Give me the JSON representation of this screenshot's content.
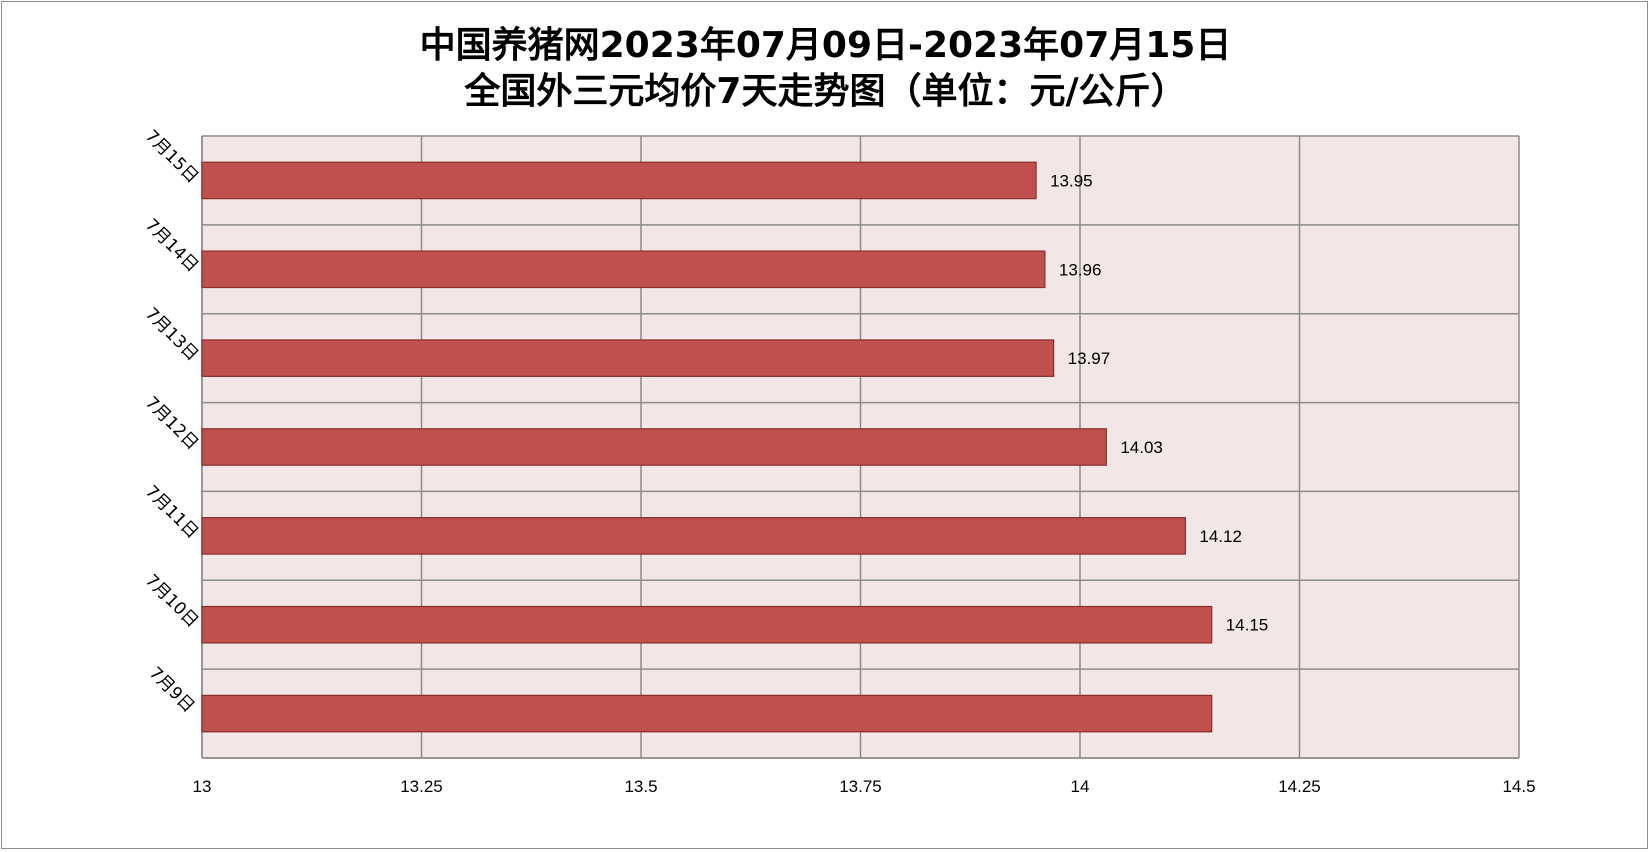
{
  "chart_data": {
    "type": "bar",
    "orientation": "horizontal",
    "title": "中国养猪网2023年07月09日-2023年07月15日",
    "subtitle": "全国外三元均价7天走势图（单位：元/公斤）",
    "categories": [
      "7月15日",
      "7月14日",
      "7月13日",
      "7月12日",
      "7月11日",
      "7月10日",
      "7月9日"
    ],
    "values": [
      13.95,
      13.96,
      13.97,
      14.03,
      14.12,
      14.15,
      14.15
    ],
    "data_labels": [
      "13.95",
      "13.96",
      "13.97",
      "14.03",
      "14.12",
      "14.15",
      ""
    ],
    "xlim": [
      13,
      14.5
    ],
    "xticks": [
      "13",
      "13.25",
      "13.5",
      "13.75",
      "14",
      "14.25",
      "14.5"
    ],
    "xtick_values": [
      13,
      13.25,
      13.5,
      13.75,
      14,
      14.25,
      14.5
    ],
    "xlabel": "",
    "ylabel": "",
    "grid": true,
    "legend": "none",
    "colors": {
      "bar_fill": "#c0504d",
      "bar_stroke": "#8c2d2a",
      "plot_background": "#f2e6e6",
      "grid": "#8c8c8c"
    }
  }
}
